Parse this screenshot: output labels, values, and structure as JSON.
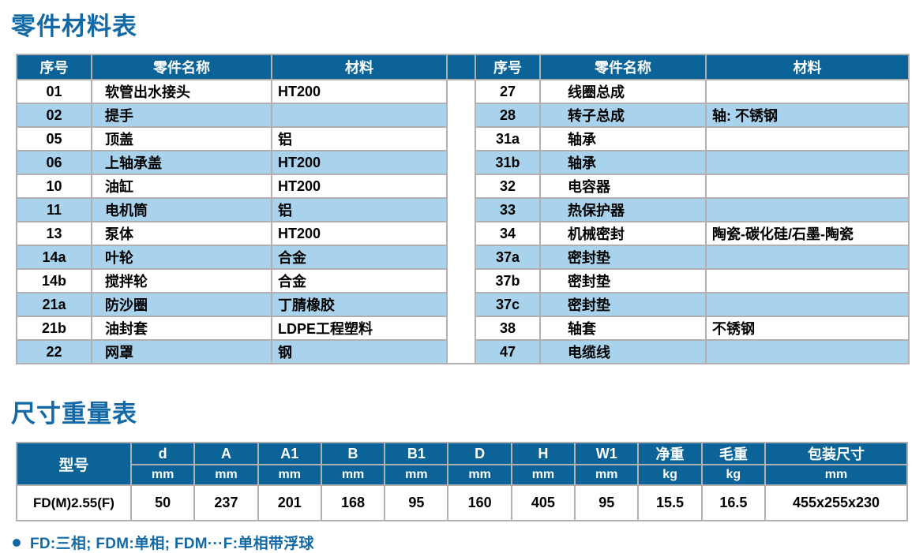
{
  "page": {
    "title1": "零件材料表",
    "title2": "尺寸重量表",
    "footnote": "FD:三相; FDM:单相; FDM···F:单相带浮球"
  },
  "colors": {
    "header_bg": "#0b6398",
    "stripe_bg": "#a9d3ec",
    "title": "#1269a6",
    "border": "#b0b0b0"
  },
  "parts_table": {
    "headers": {
      "no": "序号",
      "name": "零件名称",
      "material": "材料"
    },
    "left_rows": [
      {
        "no": "01",
        "name": "软管出水接头",
        "material": "HT200"
      },
      {
        "no": "02",
        "name": "提手",
        "material": ""
      },
      {
        "no": "05",
        "name": "顶盖",
        "material": "铝"
      },
      {
        "no": "06",
        "name": "上轴承盖",
        "material": "HT200"
      },
      {
        "no": "10",
        "name": "油缸",
        "material": "HT200"
      },
      {
        "no": "11",
        "name": "电机筒",
        "material": "铝"
      },
      {
        "no": "13",
        "name": "泵体",
        "material": "HT200"
      },
      {
        "no": "14a",
        "name": "叶轮",
        "material": "合金"
      },
      {
        "no": "14b",
        "name": "搅拌轮",
        "material": "合金"
      },
      {
        "no": "21a",
        "name": "防沙圈",
        "material": "丁腈橡胶"
      },
      {
        "no": "21b",
        "name": "油封套",
        "material": "LDPE工程塑料"
      },
      {
        "no": "22",
        "name": "网罩",
        "material": "钢"
      }
    ],
    "right_rows": [
      {
        "no": "27",
        "name": "线圈总成",
        "material": ""
      },
      {
        "no": "28",
        "name": "转子总成",
        "material": "轴: 不锈钢"
      },
      {
        "no": "31a",
        "name": "轴承",
        "material": ""
      },
      {
        "no": "31b",
        "name": "轴承",
        "material": ""
      },
      {
        "no": "32",
        "name": "电容器",
        "material": ""
      },
      {
        "no": "33",
        "name": "热保护器",
        "material": ""
      },
      {
        "no": "34",
        "name": "机械密封",
        "material": "陶瓷-碳化硅/石墨-陶瓷"
      },
      {
        "no": "37a",
        "name": "密封垫",
        "material": ""
      },
      {
        "no": "37b",
        "name": "密封垫",
        "material": ""
      },
      {
        "no": "37c",
        "name": "密封垫",
        "material": ""
      },
      {
        "no": "38",
        "name": "轴套",
        "material": "不锈钢"
      },
      {
        "no": "47",
        "name": "电缆线",
        "material": ""
      }
    ]
  },
  "dimensions_table": {
    "model_header": "型号",
    "columns": [
      {
        "label": "d",
        "unit": "mm"
      },
      {
        "label": "A",
        "unit": "mm"
      },
      {
        "label": "A1",
        "unit": "mm"
      },
      {
        "label": "B",
        "unit": "mm"
      },
      {
        "label": "B1",
        "unit": "mm"
      },
      {
        "label": "D",
        "unit": "mm"
      },
      {
        "label": "H",
        "unit": "mm"
      },
      {
        "label": "W1",
        "unit": "mm"
      },
      {
        "label": "净重",
        "unit": "kg"
      },
      {
        "label": "毛重",
        "unit": "kg"
      },
      {
        "label": "包装尺寸",
        "unit": "mm"
      }
    ],
    "row": {
      "model": "FD(M)2.55(F)",
      "values": [
        "50",
        "237",
        "201",
        "168",
        "95",
        "160",
        "405",
        "95",
        "15.5",
        "16.5",
        "455x255x230"
      ]
    }
  }
}
